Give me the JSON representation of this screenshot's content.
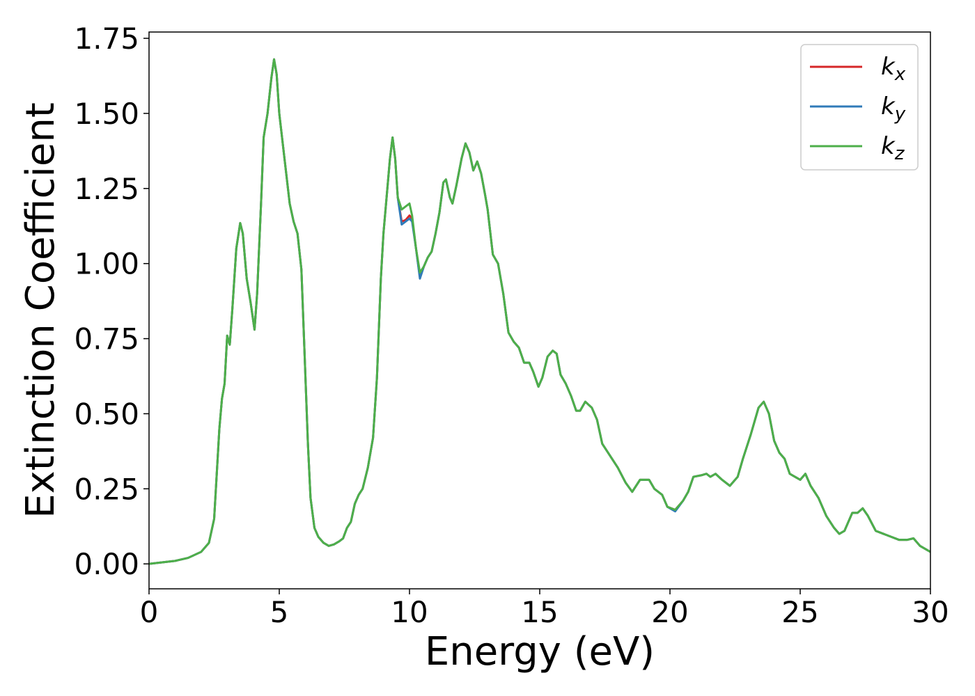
{
  "chart_data": {
    "type": "line",
    "xlabel": "Energy (eV)",
    "ylabel": "Extinction Coefficient",
    "x": [
      0,
      0.5,
      1,
      1.5,
      2,
      2.3,
      2.5,
      2.7,
      2.8,
      2.9,
      3,
      3.1,
      3.2,
      3.35,
      3.5,
      3.6,
      3.75,
      3.9,
      4.05,
      4.15,
      4.3,
      4.4,
      4.55,
      4.7,
      4.8,
      4.9,
      5,
      5.2,
      5.4,
      5.55,
      5.7,
      5.85,
      5.95,
      6.1,
      6.2,
      6.35,
      6.5,
      6.7,
      6.9,
      7.1,
      7.3,
      7.45,
      7.6,
      7.75,
      7.9,
      8.05,
      8.2,
      8.4,
      8.6,
      8.75,
      8.9,
      9,
      9.1,
      9.25,
      9.35,
      9.45,
      9.55,
      9.7,
      9.85,
      10,
      10.1,
      10.25,
      10.4,
      10.55,
      10.7,
      10.85,
      11,
      11.15,
      11.3,
      11.4,
      11.55,
      11.65,
      11.8,
      12,
      12.15,
      12.3,
      12.45,
      12.6,
      12.75,
      12.9,
      13,
      13.2,
      13.4,
      13.6,
      13.8,
      14,
      14.2,
      14.4,
      14.6,
      14.75,
      14.95,
      15.1,
      15.3,
      15.5,
      15.65,
      15.8,
      16,
      16.2,
      16.4,
      16.55,
      16.75,
      17,
      17.2,
      17.4,
      17.7,
      18,
      18.3,
      18.55,
      18.85,
      19,
      19.2,
      19.4,
      19.7,
      19.9,
      20.2,
      20.5,
      20.7,
      20.9,
      21.2,
      21.4,
      21.55,
      21.75,
      22,
      22.3,
      22.6,
      22.8,
      23.1,
      23.4,
      23.6,
      23.8,
      24,
      24.2,
      24.4,
      24.6,
      24.8,
      25,
      25.2,
      25.4,
      25.7,
      26,
      26.3,
      26.5,
      26.7,
      27,
      27.2,
      27.4,
      27.6,
      27.9,
      28.2,
      28.5,
      28.8,
      29.1,
      29.35,
      29.6,
      30
    ],
    "series": [
      {
        "name": "kx",
        "color": "#d62728",
        "values": [
          0,
          0.005,
          0.01,
          0.02,
          0.04,
          0.07,
          0.15,
          0.45,
          0.55,
          0.6,
          0.76,
          0.73,
          0.85,
          1.05,
          1.135,
          1.1,
          0.95,
          0.87,
          0.78,
          0.9,
          1.2,
          1.42,
          1.5,
          1.62,
          1.68,
          1.63,
          1.5,
          1.35,
          1.2,
          1.14,
          1.1,
          0.98,
          0.75,
          0.4,
          0.22,
          0.12,
          0.09,
          0.07,
          0.06,
          0.065,
          0.075,
          0.085,
          0.12,
          0.14,
          0.2,
          0.23,
          0.25,
          0.32,
          0.42,
          0.62,
          0.95,
          1.1,
          1.2,
          1.35,
          1.42,
          1.35,
          1.22,
          1.14,
          1.145,
          1.16,
          1.15,
          1.05,
          0.955,
          0.99,
          1.02,
          1.04,
          1.1,
          1.17,
          1.27,
          1.28,
          1.22,
          1.2,
          1.26,
          1.35,
          1.4,
          1.37,
          1.31,
          1.34,
          1.3,
          1.23,
          1.18,
          1.03,
          1,
          0.9,
          0.77,
          0.74,
          0.72,
          0.67,
          0.67,
          0.64,
          0.59,
          0.62,
          0.69,
          0.71,
          0.7,
          0.63,
          0.6,
          0.56,
          0.51,
          0.51,
          0.54,
          0.52,
          0.48,
          0.4,
          0.36,
          0.32,
          0.27,
          0.24,
          0.28,
          0.28,
          0.28,
          0.25,
          0.23,
          0.19,
          0.18,
          0.21,
          0.24,
          0.29,
          0.295,
          0.3,
          0.29,
          0.3,
          0.28,
          0.26,
          0.29,
          0.35,
          0.43,
          0.52,
          0.54,
          0.5,
          0.41,
          0.37,
          0.35,
          0.3,
          0.29,
          0.28,
          0.3,
          0.26,
          0.22,
          0.16,
          0.12,
          0.1,
          0.11,
          0.17,
          0.17,
          0.185,
          0.16,
          0.11,
          0.1,
          0.09,
          0.08,
          0.08,
          0.085,
          0.06,
          0.04
        ]
      },
      {
        "name": "ky",
        "color": "#2f7ab8",
        "values": [
          0,
          0.005,
          0.01,
          0.02,
          0.04,
          0.07,
          0.15,
          0.45,
          0.55,
          0.6,
          0.76,
          0.73,
          0.85,
          1.05,
          1.135,
          1.1,
          0.95,
          0.87,
          0.78,
          0.9,
          1.2,
          1.42,
          1.5,
          1.62,
          1.68,
          1.63,
          1.5,
          1.35,
          1.2,
          1.14,
          1.1,
          0.98,
          0.75,
          0.4,
          0.22,
          0.12,
          0.09,
          0.07,
          0.06,
          0.065,
          0.075,
          0.085,
          0.12,
          0.14,
          0.2,
          0.23,
          0.25,
          0.32,
          0.42,
          0.62,
          0.95,
          1.1,
          1.2,
          1.35,
          1.42,
          1.35,
          1.22,
          1.13,
          1.14,
          1.15,
          1.14,
          1.05,
          0.95,
          0.99,
          1.02,
          1.04,
          1.1,
          1.17,
          1.27,
          1.28,
          1.22,
          1.2,
          1.26,
          1.35,
          1.4,
          1.37,
          1.31,
          1.34,
          1.3,
          1.23,
          1.18,
          1.03,
          1,
          0.9,
          0.77,
          0.74,
          0.72,
          0.67,
          0.67,
          0.64,
          0.59,
          0.62,
          0.69,
          0.71,
          0.7,
          0.63,
          0.6,
          0.56,
          0.51,
          0.51,
          0.54,
          0.52,
          0.48,
          0.4,
          0.36,
          0.32,
          0.27,
          0.24,
          0.28,
          0.28,
          0.28,
          0.25,
          0.23,
          0.19,
          0.175,
          0.21,
          0.24,
          0.29,
          0.295,
          0.3,
          0.29,
          0.3,
          0.28,
          0.26,
          0.29,
          0.35,
          0.43,
          0.52,
          0.54,
          0.5,
          0.41,
          0.37,
          0.35,
          0.3,
          0.29,
          0.28,
          0.3,
          0.26,
          0.22,
          0.16,
          0.12,
          0.1,
          0.11,
          0.17,
          0.17,
          0.185,
          0.16,
          0.11,
          0.1,
          0.09,
          0.08,
          0.08,
          0.085,
          0.06,
          0.04
        ]
      },
      {
        "name": "kz",
        "color": "#4daf4a",
        "values": [
          0,
          0.005,
          0.01,
          0.02,
          0.04,
          0.07,
          0.15,
          0.45,
          0.55,
          0.6,
          0.76,
          0.73,
          0.85,
          1.05,
          1.135,
          1.1,
          0.95,
          0.87,
          0.78,
          0.9,
          1.2,
          1.42,
          1.5,
          1.62,
          1.68,
          1.63,
          1.5,
          1.35,
          1.2,
          1.14,
          1.1,
          0.98,
          0.75,
          0.4,
          0.22,
          0.12,
          0.09,
          0.07,
          0.06,
          0.065,
          0.075,
          0.085,
          0.12,
          0.14,
          0.2,
          0.23,
          0.25,
          0.32,
          0.42,
          0.62,
          0.95,
          1.1,
          1.2,
          1.35,
          1.42,
          1.35,
          1.22,
          1.18,
          1.19,
          1.2,
          1.16,
          1.05,
          0.97,
          0.99,
          1.02,
          1.04,
          1.1,
          1.17,
          1.27,
          1.28,
          1.22,
          1.2,
          1.26,
          1.35,
          1.4,
          1.37,
          1.31,
          1.34,
          1.3,
          1.23,
          1.18,
          1.03,
          1,
          0.9,
          0.77,
          0.74,
          0.72,
          0.67,
          0.67,
          0.64,
          0.59,
          0.62,
          0.69,
          0.71,
          0.7,
          0.63,
          0.6,
          0.56,
          0.51,
          0.51,
          0.54,
          0.52,
          0.48,
          0.4,
          0.36,
          0.32,
          0.27,
          0.24,
          0.28,
          0.28,
          0.28,
          0.25,
          0.23,
          0.19,
          0.18,
          0.21,
          0.24,
          0.29,
          0.295,
          0.3,
          0.29,
          0.3,
          0.28,
          0.26,
          0.29,
          0.35,
          0.43,
          0.52,
          0.54,
          0.5,
          0.41,
          0.37,
          0.35,
          0.3,
          0.29,
          0.28,
          0.3,
          0.26,
          0.22,
          0.16,
          0.12,
          0.1,
          0.11,
          0.17,
          0.17,
          0.185,
          0.16,
          0.11,
          0.1,
          0.09,
          0.08,
          0.08,
          0.085,
          0.06,
          0.04
        ]
      }
    ],
    "xlim": [
      0,
      30
    ],
    "xticks": [
      0,
      5,
      10,
      15,
      20,
      25,
      30
    ],
    "ylim": [
      -0.083,
      1.771
    ],
    "yticks": [
      {
        "value": 0,
        "label": "0.00"
      },
      0.25,
      {
        "value": 0.5,
        "label": "0.50"
      },
      0.75,
      {
        "value": 1,
        "label": "1.00"
      },
      1.25,
      {
        "value": 1.5,
        "label": "1.50"
      },
      1.75
    ],
    "grid": false,
    "legend": "upper right"
  }
}
